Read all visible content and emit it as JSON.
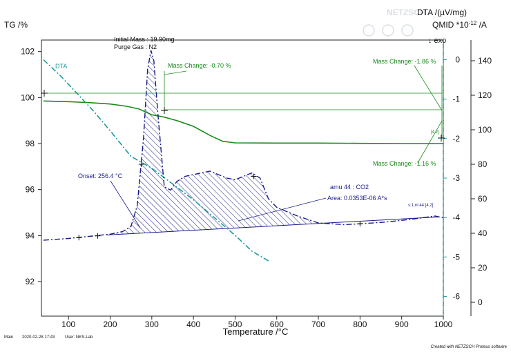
{
  "chart_data": {
    "type": "line",
    "title": "",
    "xlabel": "Temperature /°C",
    "xlim": [
      35,
      1000
    ],
    "x_ticks": [
      100,
      200,
      300,
      400,
      500,
      600,
      700,
      800,
      900,
      1000
    ],
    "axes": {
      "tg": {
        "label": "TG /%",
        "ylim": [
          90.5,
          102.5
        ],
        "ticks": [
          92,
          94,
          96,
          98,
          100,
          102
        ]
      },
      "dta": {
        "label": "DTA /(µV/mg)",
        "ylim": [
          -6.5,
          0.5
        ],
        "ticks": [
          0,
          -1,
          -2,
          -3,
          -4,
          -5,
          -6
        ],
        "exo_label": "↓ exo"
      },
      "qmid": {
        "label_prefix": "QMID *10",
        "label_exp": "-12",
        "label_suffix": " /A",
        "ylim": [
          -8,
          152
        ],
        "ticks": [
          0,
          20,
          40,
          60,
          80,
          100,
          120,
          140
        ]
      }
    },
    "header": {
      "initial_mass": "Initial Mass : 19.90mg",
      "purge_gas": "Purge Gas : N2"
    },
    "series": [
      {
        "name": "TG",
        "axis": "tg",
        "color": "#1a8a1a",
        "style": "solid",
        "x": [
          40,
          100,
          150,
          200,
          240,
          270,
          300,
          330,
          360,
          400,
          440,
          470,
          500,
          600,
          700,
          800,
          900,
          1000
        ],
        "values": [
          99.85,
          99.82,
          99.78,
          99.72,
          99.62,
          99.5,
          99.25,
          99.15,
          99.0,
          98.75,
          98.35,
          98.1,
          98.03,
          98.02,
          98.02,
          98.01,
          98.0,
          98.0
        ]
      },
      {
        "name": "DTA",
        "axis": "dta",
        "color": "#1a9a9a",
        "style": "dashdot",
        "x": [
          40,
          80,
          120,
          160,
          200,
          250,
          300,
          350,
          400,
          450,
          500,
          540,
          580
        ],
        "values": [
          0.0,
          -0.4,
          -0.85,
          -1.3,
          -1.8,
          -2.45,
          -2.75,
          -3.15,
          -3.55,
          -4.0,
          -4.45,
          -4.85,
          -5.1
        ]
      },
      {
        "name": "amu 44 : CO2",
        "axis": "qmid",
        "color": "#1a1a8c",
        "style": "dashdot",
        "x": [
          40,
          100,
          160,
          200,
          230,
          250,
          265,
          280,
          290,
          298,
          305,
          315,
          330,
          345,
          360,
          380,
          400,
          420,
          440,
          460,
          480,
          500,
          520,
          540,
          560,
          580,
          600,
          650,
          700,
          760,
          800,
          860,
          920,
          980,
          1000
        ],
        "values": [
          36,
          37,
          38.5,
          39.5,
          41,
          44,
          56,
          95,
          135,
          146,
          140,
          108,
          67,
          65,
          70,
          73,
          74,
          75,
          76,
          74,
          72,
          71,
          73,
          75,
          72,
          60,
          55,
          50,
          46,
          45,
          45.5,
          46.5,
          48,
          50,
          49
        ]
      }
    ],
    "peak_area": {
      "label": "amu 44 : CO2",
      "area_label": "Area: 0.0353E-06 A*s",
      "baseline": {
        "x": [
          190,
          990
        ],
        "values": [
          39,
          49.5
        ]
      },
      "fill_color": "#3a3a9a"
    },
    "annotations": {
      "mass_change_1": "Mass Change: -0.70 %",
      "mass_change_2": "Mass Change: -1.86 %",
      "mass_change_3": "Mass Change: -1.16 %",
      "onset": "Onset: 256.4 °C",
      "segment_marker": "s:1;m:44 [4.2]",
      "tg_marker": "[4.2]",
      "dta_label": "DTA"
    },
    "footer": {
      "mode": "Main",
      "timestamp": "2020-02-28 17:43",
      "user": "User: NKS-Lab",
      "credit": "Created with NETZSCH Proteus software"
    },
    "watermark": "NETZSCH"
  }
}
